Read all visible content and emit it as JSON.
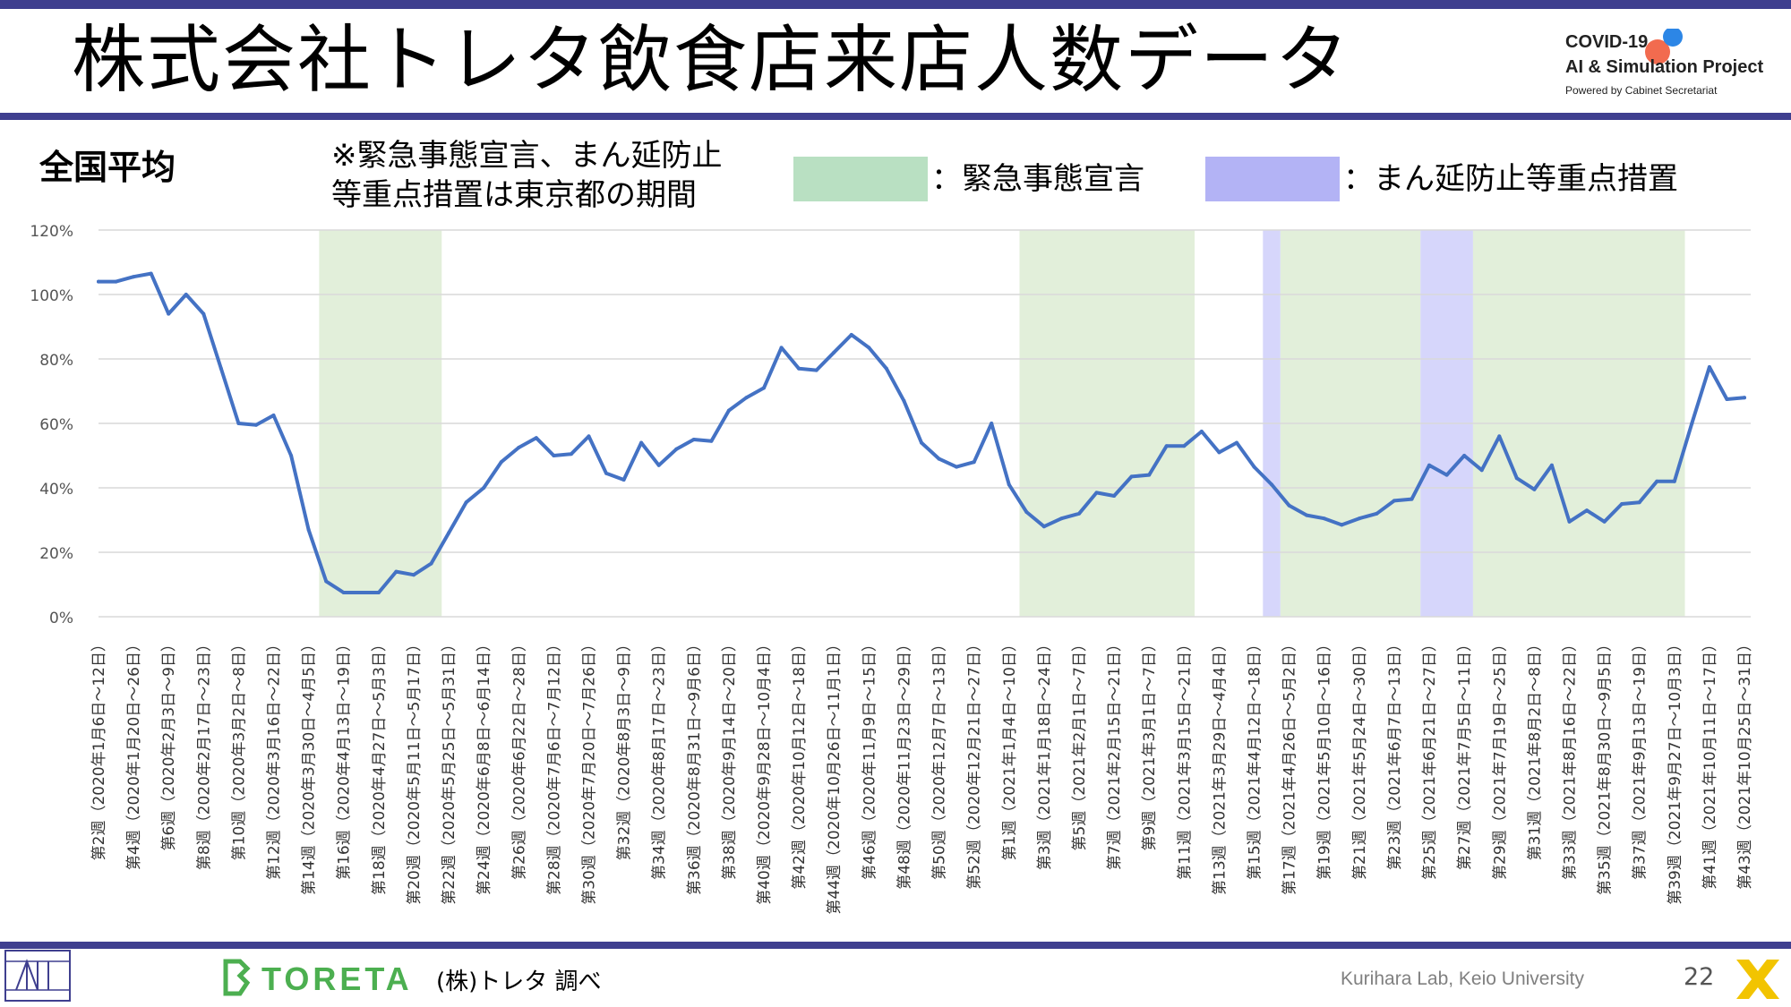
{
  "header": {
    "title": "株式会社トレタ飲食店来店人数データ",
    "brand_line1": "COVID-19",
    "brand_line2": "AI & Simulation Project",
    "brand_line3": "Powered by Cabinet Secretariat"
  },
  "subtitle": "全国平均",
  "note": [
    "※緊急事態宣言、まん延防止",
    "等重点措置は東京都の期間"
  ],
  "legend": [
    {
      "label": "：緊急事態宣言",
      "color": "#b9e0c2"
    },
    {
      "label": "：まん延防止等重点措置",
      "color": "#b3b3f5"
    }
  ],
  "footer": {
    "source": "(株)トレタ 調べ",
    "logo_text": "TORETA",
    "lab": "Kurihara Lab, Keio University",
    "page": "22"
  },
  "colors": {
    "line": "#4472c4",
    "emergency_band": "#e2efda",
    "priority_band": "#d6d6fb",
    "bar": "#3f3f8f",
    "grid": "#d9d9d9"
  },
  "chart_data": {
    "type": "line",
    "ylim": [
      0,
      1.2
    ],
    "y_ticks": [
      "0%",
      "20%",
      "40%",
      "60%",
      "80%",
      "100%",
      "120%"
    ],
    "y_tick_values": [
      0,
      0.2,
      0.4,
      0.6,
      0.8,
      1.0,
      1.2
    ],
    "x_tick_labels": [
      "第2週（2020年1月6日～12日）",
      "第4週（2020年1月20日～26日）",
      "第6週（2020年2月3日～9日）",
      "第8週（2020年2月17日～23日）",
      "第10週（2020年3月2日～8日）",
      "第12週（2020年3月16日～22日）",
      "第14週（2020年3月30日～4月5日）",
      "第16週（2020年4月13日～19日）",
      "第18週（2020年4月27日～5月3日）",
      "第20週（2020年5月11日～5月17日）",
      "第22週（2020年5月25日～5月31日）",
      "第24週（2020年6月8日～6月14日）",
      "第26週（2020年6月22日～28日）",
      "第28週（2020年7月6日～7月12日）",
      "第30週（2020年7月20日～7月26日）",
      "第32週（2020年8月3日～9日）",
      "第34週（2020年8月17日～23日）",
      "第36週（2020年8月31日～9月6日）",
      "第38週（2020年9月14日～20日）",
      "第40週（2020年9月28日～10月4日）",
      "第42週（2020年10月12日～18日）",
      "第44週（2020年10月26日～11月1日）",
      "第46週（2020年11月9日～15日）",
      "第48週（2020年11月23日～29日）",
      "第50週（2020年12月7日～13日）",
      "第52週（2020年12月21日～27日）",
      "第1週（2021年1月4日～10日）",
      "第3週（2021年1月18日～24日）",
      "第5週（2021年2月1日～7日）",
      "第7週（2021年2月15日～21日）",
      "第9週（2021年3月1日～7日）",
      "第11週（2021年3月15日～21日）",
      "第13週（2021年3月29日～4月4日）",
      "第15週（2021年4月12日～18日）",
      "第17週（2021年4月26日～5月2日）",
      "第19週（2021年5月10日～16日）",
      "第21週（2021年5月24日～30日）",
      "第23週（2021年6月7日～13日）",
      "第25週（2021年6月21日～27日）",
      "第27週（2021年7月5日～11日）",
      "第29週（2021年7月19日～25日）",
      "第31週（2021年8月2日～8日）",
      "第33週（2021年8月16日～22日）",
      "第35週（2021年8月30日～9月5日）",
      "第37週（2021年9月13日～19日）",
      "第39週（2021年9月27日～10月3日）",
      "第41週（2021年10月11日～17日）",
      "第43週（2021年10月25日～31日）"
    ],
    "values": [
      1.04,
      1.04,
      1.055,
      1.065,
      0.94,
      1.0,
      0.94,
      0.77,
      0.6,
      0.595,
      0.625,
      0.5,
      0.27,
      0.11,
      0.075,
      0.075,
      0.075,
      0.14,
      0.13,
      0.165,
      0.26,
      0.355,
      0.4,
      0.48,
      0.525,
      0.555,
      0.5,
      0.505,
      0.56,
      0.445,
      0.425,
      0.54,
      0.47,
      0.52,
      0.55,
      0.545,
      0.64,
      0.68,
      0.71,
      0.835,
      0.77,
      0.765,
      0.82,
      0.875,
      0.835,
      0.77,
      0.67,
      0.54,
      0.49,
      0.465,
      0.48,
      0.6,
      0.41,
      0.325,
      0.28,
      0.305,
      0.32,
      0.385,
      0.375,
      0.435,
      0.44,
      0.53,
      0.53,
      0.575,
      0.51,
      0.54,
      0.465,
      0.41,
      0.345,
      0.315,
      0.305,
      0.285,
      0.305,
      0.32,
      0.36,
      0.365,
      0.47,
      0.44,
      0.5,
      0.455,
      0.56,
      0.43,
      0.395,
      0.47,
      0.295,
      0.33,
      0.295,
      0.35,
      0.355,
      0.42,
      0.42,
      0.6,
      0.775,
      0.675,
      0.68
    ],
    "bands": [
      {
        "type": "emergency",
        "start_index": 12.6,
        "end_index": 19.6
      },
      {
        "type": "emergency",
        "start_index": 52.6,
        "end_index": 62.6
      },
      {
        "type": "priority",
        "start_index": 66.5,
        "end_index": 67.5
      },
      {
        "type": "emergency",
        "start_index": 67.5,
        "end_index": 75.5
      },
      {
        "type": "priority",
        "start_index": 75.5,
        "end_index": 78.5
      },
      {
        "type": "emergency",
        "start_index": 78.5,
        "end_index": 90.6
      }
    ]
  }
}
